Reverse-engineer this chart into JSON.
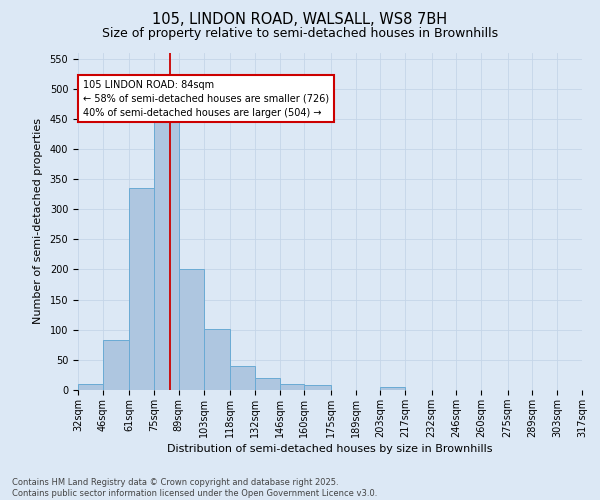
{
  "title_line1": "105, LINDON ROAD, WALSALL, WS8 7BH",
  "title_line2": "Size of property relative to semi-detached houses in Brownhills",
  "xlabel": "Distribution of semi-detached houses by size in Brownhills",
  "ylabel": "Number of semi-detached properties",
  "bar_color": "#aec6e0",
  "bar_edge_color": "#6aaad4",
  "background_color": "#dce8f5",
  "bins": [
    32,
    46,
    61,
    75,
    89,
    103,
    118,
    132,
    146,
    160,
    175,
    189,
    203,
    217,
    232,
    246,
    260,
    275,
    289,
    303,
    317
  ],
  "bin_labels": [
    "32sqm",
    "46sqm",
    "61sqm",
    "75sqm",
    "89sqm",
    "103sqm",
    "118sqm",
    "132sqm",
    "146sqm",
    "160sqm",
    "175sqm",
    "189sqm",
    "203sqm",
    "217sqm",
    "232sqm",
    "246sqm",
    "260sqm",
    "275sqm",
    "289sqm",
    "303sqm",
    "317sqm"
  ],
  "bar_heights": [
    10,
    83,
    335,
    458,
    200,
    102,
    39,
    20,
    10,
    9,
    0,
    0,
    5,
    0,
    0,
    0,
    0,
    0,
    0,
    0
  ],
  "vline_x": 84,
  "annotation_text": "105 LINDON ROAD: 84sqm\n← 58% of semi-detached houses are smaller (726)\n40% of semi-detached houses are larger (504) →",
  "annotation_box_color": "#ffffff",
  "annotation_box_edge": "#cc0000",
  "vline_color": "#cc0000",
  "ylim": [
    0,
    560
  ],
  "yticks": [
    0,
    50,
    100,
    150,
    200,
    250,
    300,
    350,
    400,
    450,
    500,
    550
  ],
  "footer_line1": "Contains HM Land Registry data © Crown copyright and database right 2025.",
  "footer_line2": "Contains public sector information licensed under the Open Government Licence v3.0.",
  "title_fontsize": 10.5,
  "subtitle_fontsize": 9,
  "axis_fontsize": 8,
  "tick_fontsize": 7,
  "grid_color": "#c5d5e8",
  "footer_fontsize": 6
}
